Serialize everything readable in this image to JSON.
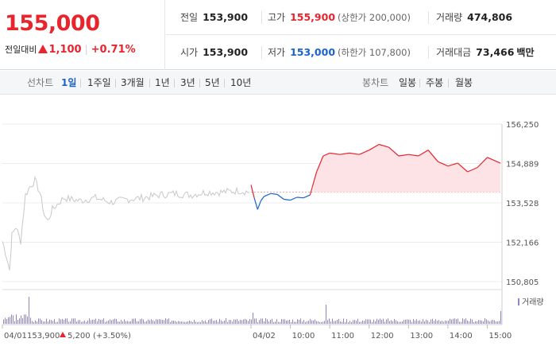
{
  "quote": {
    "price": "155,000",
    "change_label": "전일대비",
    "change_value": "1,100",
    "change_pct": "+0.71%",
    "prev_close_label": "전일",
    "prev_close": "153,900",
    "open_label": "시가",
    "open": "153,900",
    "high_label": "고가",
    "high": "155,900",
    "upper_limit": "(상한가 200,000)",
    "low_label": "저가",
    "low": "153,000",
    "lower_limit": "(하한가 107,800)",
    "volume_label": "거래량",
    "volume": "474,806",
    "trade_value_label": "거래대금",
    "trade_value": "73,466",
    "trade_value_unit": "백만"
  },
  "toolbar": {
    "line_chart_label": "선차트",
    "line_periods": [
      "1일",
      "1주일",
      "3개월",
      "1년",
      "3년",
      "5년",
      "10년"
    ],
    "active_period": "1일",
    "candle_chart_label": "봉차트",
    "candle_periods": [
      "일봉",
      "주봉",
      "월봉"
    ]
  },
  "colors": {
    "up": "#e8242d",
    "down": "#1b63cc",
    "up_fill": "#fde3e5",
    "history_line": "#c8c8c8",
    "volume_bar": "#8e86c6"
  },
  "chart_data": {
    "type": "line",
    "y_ticks": [
      "156,250",
      "154,889",
      "153,528",
      "152,166",
      "150,805"
    ],
    "ylim": [
      150805,
      156250
    ],
    "baseline": 153900,
    "x_ticks": [
      "04/01",
      "04/02",
      "10:00",
      "11:00",
      "12:00",
      "13:00",
      "14:00",
      "15:00"
    ],
    "volume_legend": "거래량",
    "prev_day_label": "04/01",
    "prev_day_close": "153,900",
    "prev_day_change": "5,200",
    "prev_day_change_pct": "(+3.50%)",
    "series": [
      {
        "x": [
          "09:00",
          "09:05",
          "09:10",
          "09:15",
          "09:20",
          "09:30",
          "09:40",
          "09:50",
          "10:00",
          "10:10",
          "10:20",
          "10:30",
          "10:35",
          "10:40",
          "10:50",
          "11:00",
          "11:15",
          "11:30",
          "11:45",
          "12:00",
          "12:15",
          "12:30",
          "12:45",
          "13:00",
          "13:15",
          "13:30",
          "13:45",
          "14:00",
          "14:15",
          "14:30",
          "14:45",
          "15:00",
          "15:20"
        ],
        "values": [
          154150,
          153700,
          153300,
          153600,
          153750,
          153850,
          153820,
          153650,
          153620,
          153720,
          153700,
          153800,
          154200,
          154600,
          155150,
          155250,
          155200,
          155250,
          155200,
          155350,
          155550,
          155450,
          155150,
          155200,
          155150,
          155350,
          154950,
          154800,
          154900,
          154600,
          154750,
          155100,
          154900
        ]
      }
    ]
  }
}
